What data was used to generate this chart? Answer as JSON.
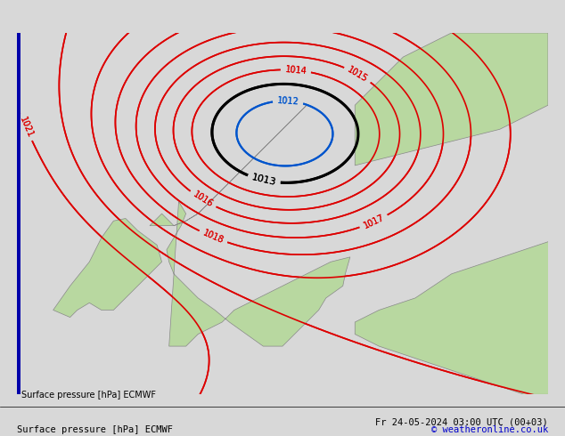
{
  "title_left": "Surface pressure [hPa] ECMWF",
  "title_right": "Fr 24-05-2024 03:00 UTC (00+03)",
  "copyright": "© weatheronline.co.uk",
  "bg_color": "#d8d8d8",
  "land_color": "#b8d8a0",
  "sea_color": "#d8d8d8",
  "black_isobar_color": "#000000",
  "red_isobar_color": "#dd0000",
  "blue_isobar_color": "#0055cc",
  "text_color_left": "#000000",
  "text_color_right": "#000000",
  "copyright_color": "#0000cc",
  "left_bar_color": "#0000aa",
  "figsize": [
    6.34,
    4.9
  ],
  "dpi": 100
}
